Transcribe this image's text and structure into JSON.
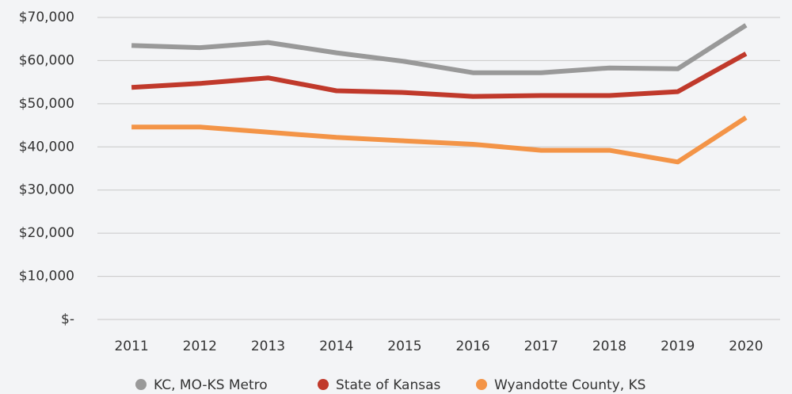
{
  "chart_data": {
    "type": "line",
    "categories": [
      "2011",
      "2012",
      "2013",
      "2014",
      "2015",
      "2016",
      "2017",
      "2018",
      "2019",
      "2020"
    ],
    "series": [
      {
        "name": "KC, MO-KS Metro",
        "color": "#999999",
        "values": [
          63500,
          63000,
          64200,
          61800,
          59800,
          57200,
          57200,
          58300,
          58100,
          68200
        ]
      },
      {
        "name": "State of Kansas",
        "color": "#c0392b",
        "values": [
          53800,
          54700,
          56000,
          53000,
          52600,
          51700,
          51900,
          51900,
          52800,
          61600
        ]
      },
      {
        "name": "Wyandotte County, KS",
        "color": "#f39447",
        "values": [
          44600,
          44600,
          43400,
          42200,
          41400,
          40600,
          39200,
          39200,
          36500,
          46800
        ]
      }
    ],
    "ylim": [
      0,
      70000
    ],
    "yticks": [
      {
        "value": 0,
        "label": "$-"
      },
      {
        "value": 10000,
        "label": "$10,000"
      },
      {
        "value": 20000,
        "label": "$20,000"
      },
      {
        "value": 30000,
        "label": "$30,000"
      },
      {
        "value": 40000,
        "label": "$40,000"
      },
      {
        "value": 50000,
        "label": "$50,000"
      },
      {
        "value": 60000,
        "label": "$60,000"
      },
      {
        "value": 70000,
        "label": "$70,000"
      }
    ],
    "grid": true,
    "legend": "bottom"
  }
}
